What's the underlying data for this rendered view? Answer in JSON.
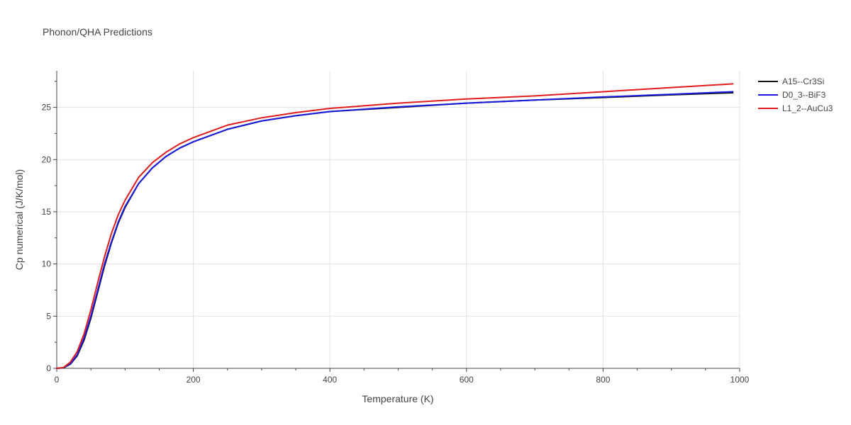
{
  "chart_data": {
    "type": "line",
    "title": "Phonon/QHA Predictions",
    "xlabel": "Temperature (K)",
    "ylabel": "Cp numerical (J/K/mol)",
    "xlim": [
      0,
      1000
    ],
    "ylim": [
      0,
      28.5
    ],
    "xticks": [
      0,
      200,
      400,
      600,
      800,
      1000
    ],
    "yticks": [
      0,
      5,
      10,
      15,
      20,
      25
    ],
    "grid": true,
    "legend_position": "top-right",
    "x": [
      0,
      10,
      20,
      30,
      40,
      50,
      60,
      70,
      80,
      90,
      100,
      120,
      140,
      160,
      180,
      200,
      250,
      300,
      350,
      400,
      500,
      600,
      700,
      800,
      900,
      990
    ],
    "series": [
      {
        "name": "A15--Cr3Si",
        "color": "#111111",
        "values": [
          0,
          0.05,
          0.4,
          1.2,
          2.7,
          4.8,
          7.3,
          9.8,
          12.0,
          13.9,
          15.4,
          17.7,
          19.2,
          20.3,
          21.1,
          21.7,
          22.9,
          23.7,
          24.2,
          24.6,
          25.0,
          25.4,
          25.7,
          25.95,
          26.2,
          26.4
        ]
      },
      {
        "name": "D0_3--BiF3",
        "color": "#1a1adf",
        "values": [
          0,
          0.06,
          0.45,
          1.3,
          2.9,
          5.0,
          7.5,
          10.0,
          12.1,
          14.0,
          15.5,
          17.7,
          19.2,
          20.3,
          21.1,
          21.7,
          22.9,
          23.7,
          24.2,
          24.6,
          25.05,
          25.4,
          25.7,
          26.0,
          26.25,
          26.5
        ]
      },
      {
        "name": "L1_2--AuCu3",
        "color": "#e01b1b",
        "values": [
          0,
          0.08,
          0.6,
          1.6,
          3.3,
          5.6,
          8.2,
          10.7,
          12.9,
          14.7,
          16.1,
          18.3,
          19.7,
          20.7,
          21.5,
          22.1,
          23.3,
          24.0,
          24.5,
          24.9,
          25.4,
          25.8,
          26.1,
          26.5,
          26.9,
          27.25
        ]
      }
    ]
  }
}
